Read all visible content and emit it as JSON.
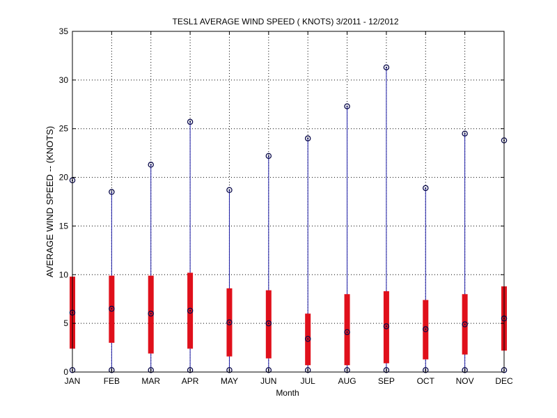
{
  "chart_data": {
    "type": "box",
    "title": "TESL1  AVERAGE WIND SPEED ( KNOTS) 3/2011 - 12/2012",
    "xlabel": "Month",
    "ylabel": "AVERAGE WIND SPEED -- (KNOTS)",
    "ylim": [
      0,
      35
    ],
    "yticks": [
      "0",
      "5",
      "10",
      "15",
      "20",
      "25",
      "30",
      "35"
    ],
    "grid": true,
    "categories": [
      "JAN",
      "FEB",
      "MAR",
      "APR",
      "MAY",
      "JUN",
      "JUL",
      "AUG",
      "SEP",
      "OCT",
      "NOV",
      "DEC"
    ],
    "min": [
      0.2,
      0.2,
      0.2,
      0.2,
      0.2,
      0.2,
      0.2,
      0.2,
      0.2,
      0.2,
      0.2,
      0.2
    ],
    "q1": [
      2.4,
      3.0,
      1.9,
      2.4,
      1.6,
      1.4,
      0.7,
      0.7,
      0.9,
      1.3,
      1.8,
      2.2
    ],
    "median": [
      6.1,
      6.5,
      6.0,
      6.3,
      5.1,
      5.0,
      3.4,
      4.1,
      4.7,
      4.4,
      4.9,
      5.5
    ],
    "q3": [
      9.8,
      9.9,
      9.9,
      10.2,
      8.6,
      8.4,
      6.0,
      8.0,
      8.3,
      7.4,
      8.0,
      8.8
    ],
    "max": [
      19.7,
      18.5,
      21.3,
      25.7,
      18.7,
      22.2,
      24.0,
      27.3,
      31.3,
      18.9,
      24.5,
      23.8
    ],
    "colors": {
      "box": "#e0101b",
      "whisker": "#1a1aa6",
      "marker": "#0a0a4a",
      "grid": "#000000",
      "axis": "#000000"
    }
  }
}
